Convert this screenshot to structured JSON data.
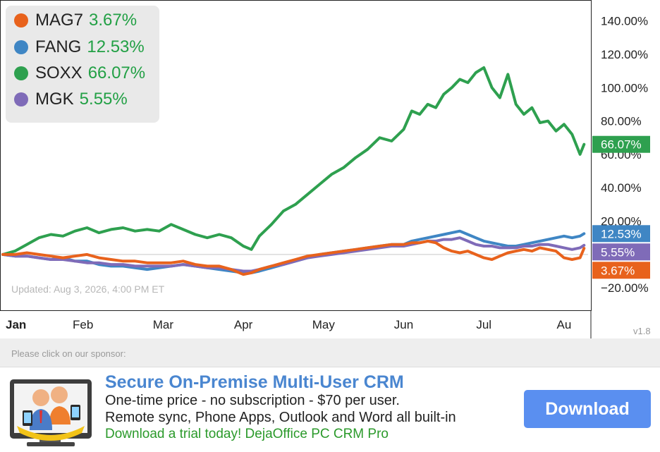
{
  "legend": [
    {
      "name": "MAG7",
      "value": "3.67%",
      "color": "#e8621c"
    },
    {
      "name": "FANG",
      "value": "12.53%",
      "color": "#3f86c4"
    },
    {
      "name": "SOXX",
      "value": "66.07%",
      "color": "#2ea04f"
    },
    {
      "name": "MGK",
      "value": "5.55%",
      "color": "#7f6bb8"
    }
  ],
  "updated_text": "Updated: Aug 3, 2026, 4:00 PM ET",
  "version": "v1.8",
  "sponsor": {
    "label": "Please click on our sponsor:",
    "title": "Secure On-Premise Multi-User CRM",
    "line1": "One-time price - no subscription - $70 per user.",
    "line2": "Remote sync, Phone Apps, Outlook and Word all built-in",
    "cta": "Download a trial today! DejaOffice PC CRM Pro",
    "button": "Download"
  },
  "chart_data": {
    "type": "line",
    "x_ticks": [
      "Jan",
      "Feb",
      "Mar",
      "Apr",
      "May",
      "Jun",
      "Jul",
      "Au"
    ],
    "y_ticks": [
      "140.00%",
      "120.00%",
      "100.00%",
      "80.00%",
      "60.00%",
      "40.00%",
      "20.00%",
      "0.00%",
      "−20.00%"
    ],
    "y_tick_values": [
      140,
      120,
      100,
      80,
      60,
      40,
      20,
      0,
      -20
    ],
    "ylim": [
      -25,
      150
    ],
    "xlim": [
      0,
      7.3
    ],
    "grid": false,
    "legend_position": "top-left",
    "series": [
      {
        "name": "SOXX",
        "color": "#2ea04f",
        "end_label": "66.07%",
        "x": [
          0,
          0.15,
          0.3,
          0.45,
          0.6,
          0.75,
          0.9,
          1.05,
          1.2,
          1.35,
          1.5,
          1.65,
          1.8,
          1.95,
          2.1,
          2.25,
          2.4,
          2.55,
          2.7,
          2.85,
          3.0,
          3.1,
          3.2,
          3.35,
          3.5,
          3.65,
          3.8,
          3.95,
          4.1,
          4.25,
          4.4,
          4.55,
          4.7,
          4.85,
          5.0,
          5.1,
          5.2,
          5.3,
          5.4,
          5.5,
          5.6,
          5.7,
          5.8,
          5.9,
          6.0,
          6.1,
          6.2,
          6.3,
          6.4,
          6.5,
          6.6,
          6.7,
          6.8,
          6.9,
          7.0,
          7.1,
          7.2,
          7.25
        ],
        "y": [
          0,
          2,
          6,
          10,
          12,
          11,
          14,
          16,
          13,
          15,
          16,
          14,
          15,
          14,
          18,
          15,
          12,
          10,
          12,
          10,
          5,
          3,
          11,
          18,
          26,
          30,
          36,
          42,
          48,
          52,
          58,
          63,
          70,
          68,
          75,
          86,
          84,
          90,
          88,
          96,
          100,
          105,
          103,
          109,
          112,
          100,
          94,
          108,
          90,
          84,
          88,
          79,
          80,
          74,
          78,
          72,
          60,
          66
        ]
      },
      {
        "name": "FANG",
        "color": "#3f86c4",
        "end_label": "12.53%",
        "x": [
          0,
          0.15,
          0.3,
          0.45,
          0.6,
          0.75,
          0.9,
          1.05,
          1.2,
          1.35,
          1.5,
          1.65,
          1.8,
          1.95,
          2.1,
          2.25,
          2.4,
          2.55,
          2.7,
          2.85,
          3.0,
          3.1,
          3.2,
          3.35,
          3.5,
          3.65,
          3.8,
          3.95,
          4.1,
          4.25,
          4.4,
          4.55,
          4.7,
          4.85,
          5.0,
          5.1,
          5.2,
          5.3,
          5.4,
          5.5,
          5.6,
          5.7,
          5.8,
          5.9,
          6.0,
          6.1,
          6.2,
          6.3,
          6.4,
          6.5,
          6.6,
          6.7,
          6.8,
          6.9,
          7.0,
          7.1,
          7.2,
          7.25
        ],
        "y": [
          0,
          -1,
          -1,
          -2,
          -3,
          -2,
          -4,
          -4,
          -6,
          -7,
          -7,
          -8,
          -9,
          -8,
          -7,
          -6,
          -7,
          -8,
          -9,
          -10,
          -11,
          -11,
          -10,
          -8,
          -6,
          -4,
          -2,
          0,
          1,
          2,
          3,
          4,
          5,
          6,
          6,
          8,
          9,
          10,
          11,
          12,
          13,
          14,
          12,
          10,
          8,
          7,
          6,
          5,
          5,
          6,
          7,
          8,
          9,
          10,
          11,
          10,
          11,
          12.5
        ]
      },
      {
        "name": "MGK",
        "color": "#7f6bb8",
        "end_label": "5.55%",
        "x": [
          0,
          0.15,
          0.3,
          0.45,
          0.6,
          0.75,
          0.9,
          1.05,
          1.2,
          1.35,
          1.5,
          1.65,
          1.8,
          1.95,
          2.1,
          2.25,
          2.4,
          2.55,
          2.7,
          2.85,
          3.0,
          3.1,
          3.2,
          3.35,
          3.5,
          3.65,
          3.8,
          3.95,
          4.1,
          4.25,
          4.4,
          4.55,
          4.7,
          4.85,
          5.0,
          5.1,
          5.2,
          5.3,
          5.4,
          5.5,
          5.6,
          5.7,
          5.8,
          5.9,
          6.0,
          6.1,
          6.2,
          6.3,
          6.4,
          6.5,
          6.6,
          6.7,
          6.8,
          6.9,
          7.0,
          7.1,
          7.2,
          7.25
        ],
        "y": [
          0,
          -1,
          -1,
          -2,
          -3,
          -3,
          -4,
          -5,
          -5,
          -6,
          -6,
          -7,
          -7,
          -7,
          -7,
          -6,
          -7,
          -8,
          -8,
          -9,
          -10,
          -10,
          -9,
          -7,
          -6,
          -4,
          -2,
          -1,
          0,
          1,
          2,
          3,
          4,
          5,
          5,
          6,
          7,
          8,
          8,
          9,
          9,
          10,
          8,
          6,
          5,
          5,
          4,
          4,
          4,
          5,
          5,
          6,
          6,
          5,
          4,
          3,
          4,
          5.5
        ]
      },
      {
        "name": "MAG7",
        "color": "#e8621c",
        "end_label": "3.67%",
        "x": [
          0,
          0.15,
          0.3,
          0.45,
          0.6,
          0.75,
          0.9,
          1.05,
          1.2,
          1.35,
          1.5,
          1.65,
          1.8,
          1.95,
          2.1,
          2.25,
          2.4,
          2.55,
          2.7,
          2.85,
          3.0,
          3.1,
          3.2,
          3.35,
          3.5,
          3.65,
          3.8,
          3.95,
          4.1,
          4.25,
          4.4,
          4.55,
          4.7,
          4.85,
          5.0,
          5.1,
          5.2,
          5.3,
          5.4,
          5.5,
          5.6,
          5.7,
          5.8,
          5.9,
          6.0,
          6.1,
          6.2,
          6.3,
          6.4,
          6.5,
          6.6,
          6.7,
          6.8,
          6.9,
          7.0,
          7.1,
          7.2,
          7.25
        ],
        "y": [
          0,
          0,
          1,
          0,
          -1,
          -2,
          -1,
          0,
          -2,
          -3,
          -4,
          -4,
          -5,
          -5,
          -5,
          -4,
          -6,
          -7,
          -7,
          -9,
          -12,
          -11,
          -9,
          -7,
          -5,
          -3,
          -1,
          0,
          1,
          2,
          3,
          4,
          5,
          6,
          6,
          7,
          7,
          8,
          7,
          4,
          2,
          1,
          2,
          0,
          -2,
          -3,
          -1,
          1,
          2,
          3,
          2,
          4,
          3,
          2,
          -2,
          -3,
          -2,
          3.7
        ]
      }
    ]
  }
}
